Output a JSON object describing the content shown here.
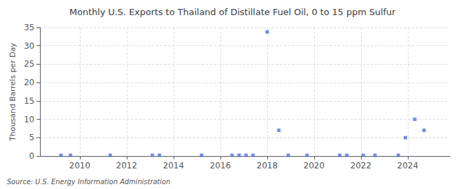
{
  "chart_data": {
    "type": "scatter",
    "title": "Monthly U.S. Exports to Thailand of Distillate Fuel Oil, 0 to 15 ppm Sulfur",
    "ylabel": "Thousand Barrels per Day",
    "source": "Source: U.S. Energy Information Administration",
    "x": [
      2009.2,
      2009.6,
      2011.3,
      2013.1,
      2013.4,
      2015.2,
      2016.5,
      2016.8,
      2017.1,
      2017.4,
      2018.0,
      2018.5,
      2018.9,
      2019.7,
      2021.1,
      2021.4,
      2022.1,
      2022.6,
      2023.6,
      2023.9,
      2024.3,
      2024.7
    ],
    "values": [
      0.2,
      0.2,
      0.2,
      0.2,
      0.2,
      0.2,
      0.2,
      0.2,
      0.2,
      0.2,
      33.8,
      7.0,
      0.2,
      0.2,
      0.2,
      0.2,
      0.2,
      0.2,
      0.2,
      5.0,
      10.0,
      7.0
    ],
    "marker": "square",
    "xlim": [
      2008.3,
      2025.8
    ],
    "xticks": [
      2010,
      2012,
      2014,
      2016,
      2018,
      2020,
      2022,
      2024
    ],
    "ylim": [
      0,
      35
    ],
    "yticks": [
      0,
      5,
      10,
      15,
      20,
      25,
      30,
      35
    ],
    "grid": true
  }
}
